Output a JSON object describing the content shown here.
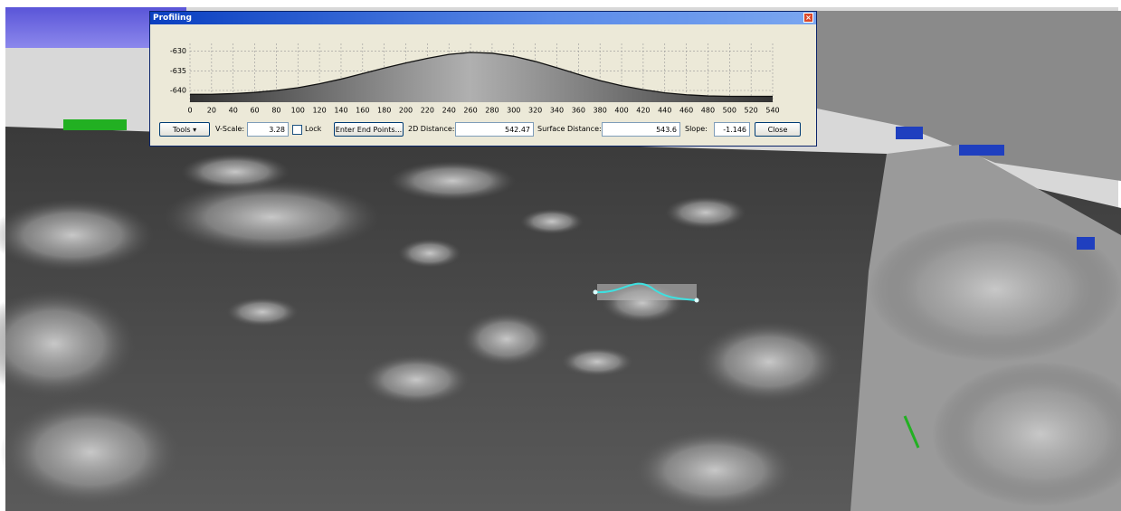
{
  "window": {
    "title": "Profiling"
  },
  "profile_chart": {
    "type": "line",
    "xlim": [
      0,
      540
    ],
    "ylim": [
      -643,
      -628
    ],
    "xticks": [
      0,
      20,
      40,
      60,
      80,
      100,
      120,
      140,
      160,
      180,
      200,
      220,
      240,
      260,
      280,
      300,
      320,
      340,
      360,
      380,
      400,
      420,
      440,
      460,
      480,
      500,
      520,
      540
    ],
    "yticks": [
      -640,
      -635,
      -630
    ],
    "grid": true,
    "color": "#111111",
    "x": [
      0,
      20,
      40,
      60,
      80,
      100,
      120,
      140,
      160,
      180,
      200,
      220,
      240,
      260,
      280,
      300,
      320,
      340,
      360,
      380,
      400,
      420,
      440,
      460,
      480,
      500,
      520,
      540
    ],
    "values": [
      -641,
      -641,
      -640.8,
      -640.5,
      -640,
      -639.3,
      -638.3,
      -637.1,
      -635.7,
      -634.3,
      -633,
      -631.8,
      -630.8,
      -630.3,
      -630.5,
      -631.3,
      -632.6,
      -634.2,
      -635.9,
      -637.5,
      -638.8,
      -639.8,
      -640.6,
      -641.1,
      -641.4,
      -641.5,
      -641.5,
      -641.5
    ]
  },
  "toolbar": {
    "tools": "Tools",
    "v_scale_label": "V-Scale:",
    "v_scale": "3.28",
    "lock": "Lock",
    "enter_end_points": "Enter End Points...",
    "distance_2d_label": "2D Distance:",
    "distance_2d": "542.47",
    "surface_distance_label": "Surface Distance:",
    "surface_distance": "543.6",
    "slope_label": "Slope:",
    "slope": "-1.146",
    "close": "Close"
  }
}
